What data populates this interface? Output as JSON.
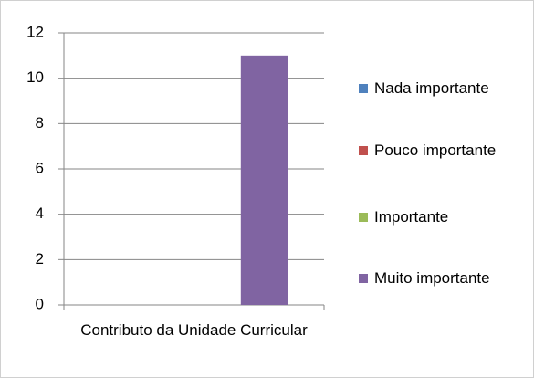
{
  "chart_data": {
    "type": "bar",
    "categories": [
      "Contributo da Unidade Curricular"
    ],
    "series": [
      {
        "name": "Nada importante",
        "color": "#4f81bd",
        "values": [
          0
        ]
      },
      {
        "name": "Pouco importante",
        "color": "#c0504d",
        "values": [
          0
        ]
      },
      {
        "name": "Importante",
        "color": "#9bbb59",
        "values": [
          0
        ]
      },
      {
        "name": "Muito importante",
        "color": "#8064a2",
        "values": [
          11
        ]
      }
    ],
    "ylim": [
      0,
      12
    ],
    "yticks": [
      0,
      2,
      4,
      6,
      8,
      10,
      12
    ],
    "grid": true,
    "legend": "right"
  }
}
